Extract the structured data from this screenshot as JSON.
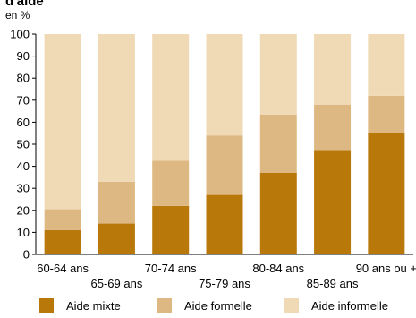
{
  "header": {
    "title": "d'aide",
    "unit": "en %"
  },
  "chart_data": {
    "type": "bar",
    "stacked": true,
    "percent_stacked": true,
    "categories": [
      "60-64 ans",
      "65-69 ans",
      "70-74 ans",
      "75-79 ans",
      "80-84 ans",
      "85-89 ans",
      "90 ans ou +"
    ],
    "series": [
      {
        "name": "Aide mixte",
        "color": "#b8780a",
        "values": [
          11,
          14,
          22,
          27,
          37,
          47,
          55
        ]
      },
      {
        "name": "Aide formelle",
        "color": "#deb882",
        "values": [
          9.5,
          19,
          20.5,
          27,
          26.5,
          21,
          17
        ]
      },
      {
        "name": "Aide informelle",
        "color": "#f0d9b5",
        "values": [
          79.5,
          67,
          57.5,
          46,
          36.5,
          32,
          28
        ]
      }
    ],
    "ylim": [
      0,
      100
    ],
    "yticks": [
      0,
      10,
      20,
      30,
      40,
      50,
      60,
      70,
      80,
      90,
      100
    ],
    "xlabel": "",
    "ylabel": "",
    "grid": false,
    "legend_position": "bottom"
  }
}
